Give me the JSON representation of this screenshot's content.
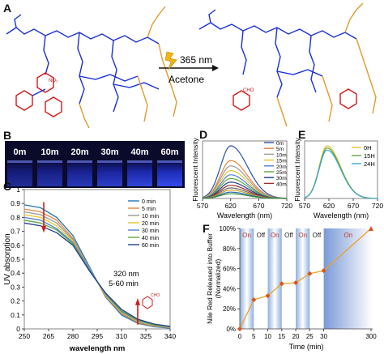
{
  "panels": {
    "a": {
      "label": "A",
      "reaction_condition": "365 nm",
      "solvent": "Acetone"
    },
    "b": {
      "label": "B",
      "vials": [
        "0m",
        "10m",
        "20m",
        "30m",
        "40m",
        "60m"
      ]
    },
    "c": {
      "label": "C",
      "annotation_line1": "320 nm",
      "annotation_line2": "5-60 min"
    },
    "d": {
      "label": "D"
    },
    "e": {
      "label": "E"
    },
    "f": {
      "label": "F"
    }
  },
  "colors": {
    "backbone": "#1a2fd6",
    "side_chain": "#e39a2a",
    "nitro": "#d11a1a",
    "uv_bg": "#0a0a2a",
    "glow": "#3a52ff"
  },
  "chart_data": [
    {
      "id": "C",
      "type": "line",
      "xlabel": "wavelength nm",
      "ylabel": "UV absorption",
      "xlim": [
        250,
        340
      ],
      "ylim": [
        0,
        1.0
      ],
      "xticks": [
        250,
        265,
        280,
        295,
        310,
        325,
        340
      ],
      "yticks": [
        0,
        0.1,
        0.2,
        0.3,
        0.4,
        0.5,
        0.6,
        0.7,
        0.8,
        0.9,
        1.0
      ],
      "ytick_labels": [
        "0",
        "0.1",
        "0.2",
        "0.3",
        "0.4",
        "0.5",
        "0.6",
        "0.7",
        "0.8",
        "0.9",
        "1"
      ],
      "x": [
        250,
        260,
        270,
        280,
        290,
        300,
        310,
        320,
        330,
        340
      ],
      "series": [
        {
          "name": "0 min",
          "color": "#1f77b4",
          "values": [
            0.89,
            0.87,
            0.8,
            0.67,
            0.45,
            0.23,
            0.1,
            0.04,
            0.015,
            0.005
          ]
        },
        {
          "name": "5 min",
          "color": "#e8823a",
          "values": [
            0.86,
            0.84,
            0.78,
            0.65,
            0.44,
            0.235,
            0.11,
            0.045,
            0.02,
            0.008
          ]
        },
        {
          "name": "10 min",
          "color": "#9a9a9a",
          "values": [
            0.84,
            0.82,
            0.76,
            0.64,
            0.44,
            0.24,
            0.115,
            0.05,
            0.022,
            0.01
          ]
        },
        {
          "name": "20 min",
          "color": "#e8c62a",
          "values": [
            0.82,
            0.8,
            0.74,
            0.63,
            0.43,
            0.245,
            0.12,
            0.055,
            0.025,
            0.012
          ]
        },
        {
          "name": "30 min",
          "color": "#4f81d6",
          "values": [
            0.8,
            0.78,
            0.72,
            0.62,
            0.43,
            0.25,
            0.125,
            0.06,
            0.028,
            0.014
          ]
        },
        {
          "name": "40 min",
          "color": "#5fa83a",
          "values": [
            0.78,
            0.76,
            0.71,
            0.61,
            0.42,
            0.255,
            0.13,
            0.065,
            0.03,
            0.016
          ]
        },
        {
          "name": "60 min",
          "color": "#1f3f8a",
          "values": [
            0.76,
            0.74,
            0.69,
            0.6,
            0.42,
            0.26,
            0.14,
            0.07,
            0.035,
            0.018
          ]
        }
      ]
    },
    {
      "id": "D",
      "type": "line",
      "xlabel": "Wavelength (nm)",
      "ylabel": "Fluorescent Intensity",
      "xlim": [
        570,
        720
      ],
      "xticks": [
        570,
        620,
        670,
        720
      ],
      "series": [
        {
          "name": "0m",
          "color": "#2a4fb0",
          "peak": 1.0
        },
        {
          "name": "5m",
          "color": "#e8823a",
          "peak": 0.72
        },
        {
          "name": "10m",
          "color": "#9a9a9a",
          "peak": 0.62
        },
        {
          "name": "15m",
          "color": "#e8c62a",
          "peak": 0.53
        },
        {
          "name": "20m",
          "color": "#4f81d6",
          "peak": 0.45
        },
        {
          "name": "25m",
          "color": "#5fa83a",
          "peak": 0.38
        },
        {
          "name": "30m",
          "color": "#1f3f8a",
          "peak": 0.31
        },
        {
          "name": "40m",
          "color": "#a02a2a",
          "peak": 0.25
        },
        {
          "name": "",
          "color": "#6a6a6a",
          "peak": 0.2
        },
        {
          "name": "",
          "color": "#c8a020",
          "peak": 0.16
        },
        {
          "name": "",
          "color": "#2a6ab0",
          "peak": 0.12
        },
        {
          "name": "",
          "color": "#3a8a3a",
          "peak": 0.09
        }
      ]
    },
    {
      "id": "E",
      "type": "line",
      "xlabel": "Wavelength (nm)",
      "ylabel": "Fluorescent Intensity",
      "xlim": [
        570,
        720
      ],
      "xticks": [
        570,
        620,
        670,
        720
      ],
      "series": [
        {
          "name": "0H",
          "color": "#e8c62a",
          "peak": 1.0
        },
        {
          "name": "15H",
          "color": "#5fa83a",
          "peak": 0.96
        },
        {
          "name": "24H",
          "color": "#3aa6d8",
          "peak": 0.92
        }
      ]
    },
    {
      "id": "F",
      "type": "line",
      "xlabel": "Time (min)",
      "ylabel": "Nile Red Released into Buffer (Normalized)",
      "ylim": [
        0,
        1.0
      ],
      "yticks": [
        0,
        0.2,
        0.4,
        0.6,
        0.8,
        1.0
      ],
      "ytick_labels": [
        "0%",
        "20%",
        "40%",
        "60%",
        "80%",
        "100%"
      ],
      "xticks": [
        "0",
        "5",
        "10",
        "15",
        "20",
        "25",
        "30",
        "300"
      ],
      "points": [
        {
          "x": "0",
          "y": 0.0
        },
        {
          "x": "5",
          "y": 0.29
        },
        {
          "x": "10",
          "y": 0.33
        },
        {
          "x": "15",
          "y": 0.45
        },
        {
          "x": "20",
          "y": 0.46
        },
        {
          "x": "25",
          "y": 0.55
        },
        {
          "x": "30",
          "y": 0.58
        },
        {
          "x": "300",
          "y": 1.0
        }
      ],
      "regions": [
        {
          "label": "On",
          "state": "on"
        },
        {
          "label": "Off",
          "state": "off"
        },
        {
          "label": "On",
          "state": "on"
        },
        {
          "label": "Off",
          "state": "off"
        },
        {
          "label": "On",
          "state": "on"
        },
        {
          "label": "Off",
          "state": "off"
        },
        {
          "label": "On",
          "state": "on"
        }
      ],
      "line_color": "#f0a020",
      "marker_color": "#d8531a"
    }
  ]
}
